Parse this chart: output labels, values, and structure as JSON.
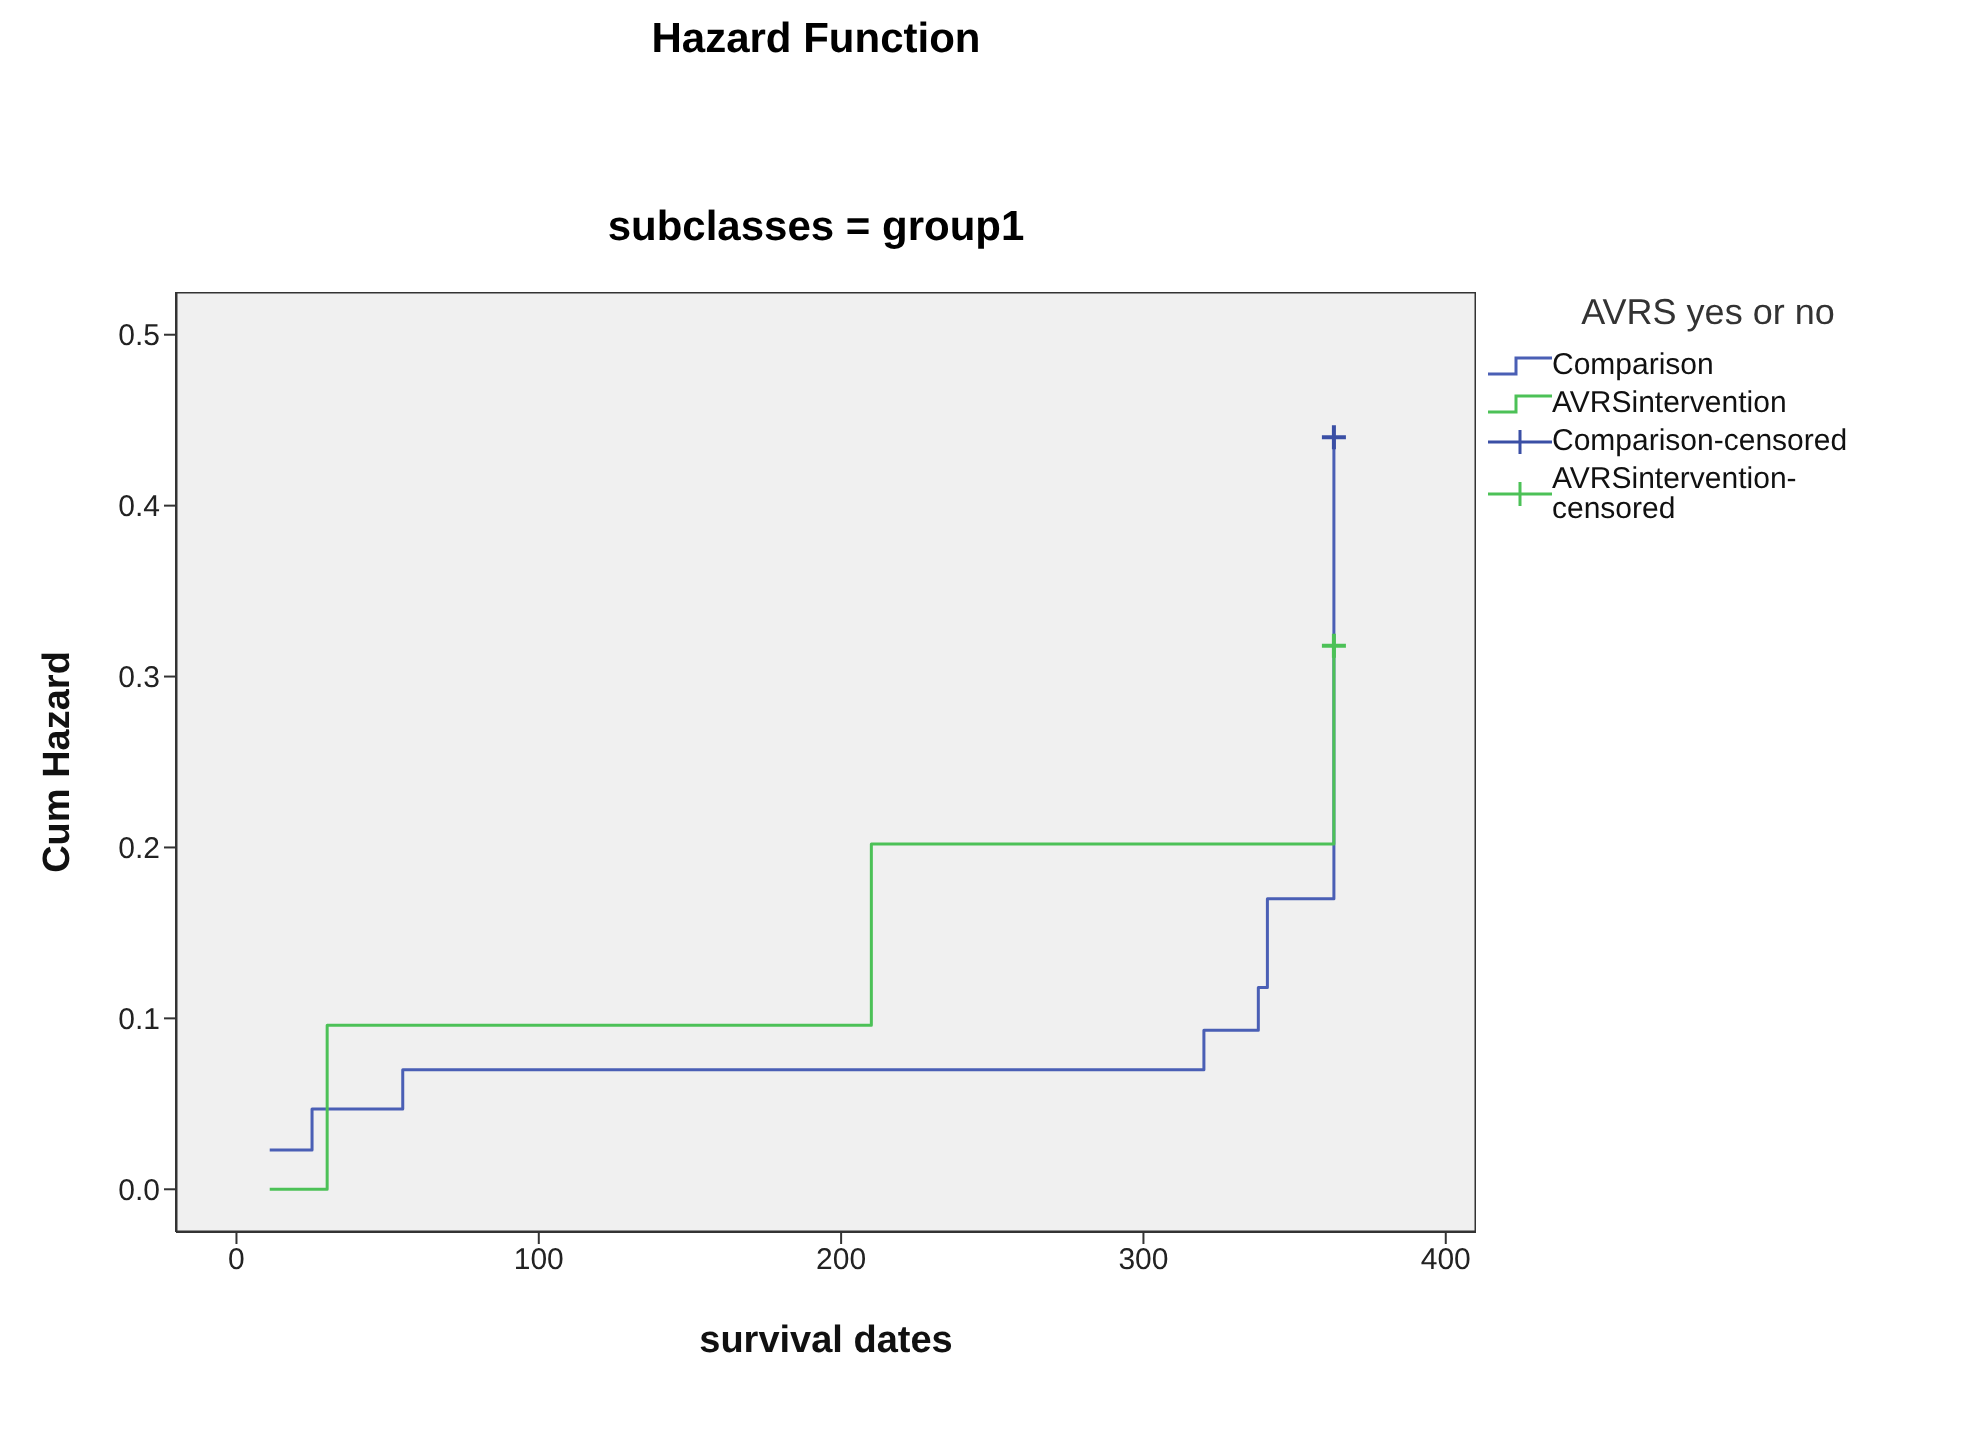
{
  "chart_data": {
    "type": "step",
    "title": "Hazard Function",
    "subtitle": "subclasses = group1",
    "xlabel": "survival dates",
    "ylabel": "Cum Hazard",
    "legend_title": "AVRS yes or no",
    "legend": "right",
    "xlim": [
      -20,
      410
    ],
    "ylim": [
      -0.025,
      0.525
    ],
    "xticks": [
      0,
      100,
      200,
      300,
      400
    ],
    "yticks": [
      {
        "value": 0,
        "label": "0.0"
      },
      0.1,
      0.2,
      0.3,
      0.4,
      0.5
    ],
    "series": [
      {
        "name": "Comparison",
        "color": "#4a5fb5",
        "x": [
          11,
          25,
          55,
          320,
          338,
          341,
          363
        ],
        "values": [
          0.023,
          0.047,
          0.07,
          0.093,
          0.118,
          0.17,
          0.44
        ]
      },
      {
        "name": "AVRSintervention",
        "color": "#4cc157",
        "x": [
          11,
          30,
          210,
          363
        ],
        "values": [
          0.0,
          0.096,
          0.202,
          0.318
        ]
      },
      {
        "name": "Comparison-censored",
        "type": "scatter",
        "marker": "cross",
        "color": "#3a4fa5",
        "x": [
          363
        ],
        "values": [
          0.44
        ]
      },
      {
        "name": "AVRSintervention-censored",
        "type": "scatter",
        "marker": "cross",
        "color": "#4cc157",
        "x": [
          363
        ],
        "values": [
          0.318
        ]
      }
    ]
  }
}
